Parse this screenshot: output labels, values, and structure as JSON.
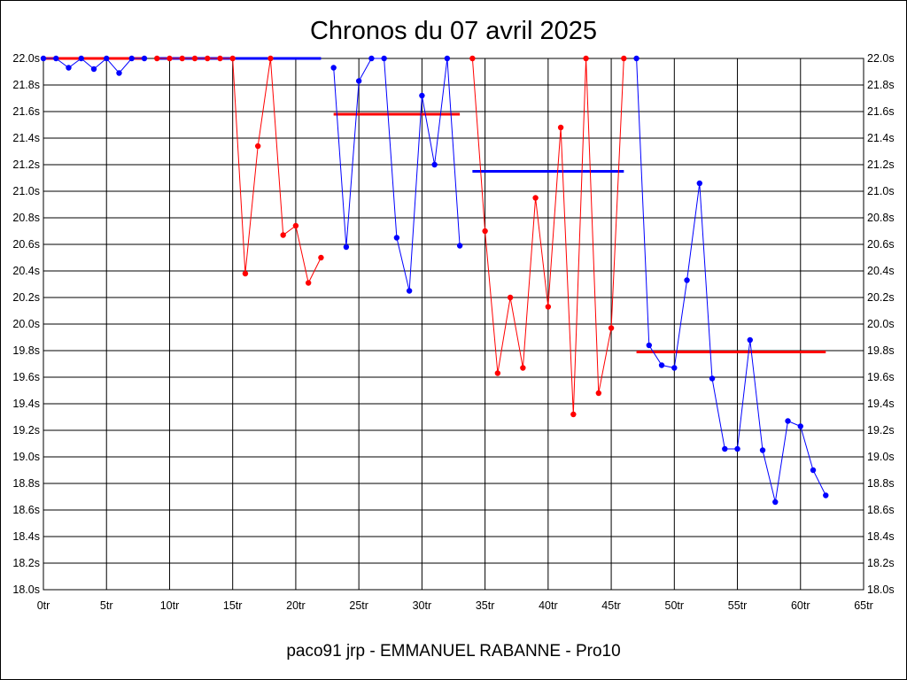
{
  "chart_data": {
    "type": "line",
    "title": "Chronos du 07 avril 2025",
    "footer": "paco91 jrp - EMMANUEL RABANNE - Pro10",
    "xlim": [
      0,
      65
    ],
    "ylim": [
      18.0,
      22.0
    ],
    "grid": true,
    "x_ticks": [
      "0tr",
      "5tr",
      "10tr",
      "15tr",
      "20tr",
      "25tr",
      "30tr",
      "35tr",
      "40tr",
      "45tr",
      "50tr",
      "55tr",
      "60tr",
      "65tr"
    ],
    "x_tick_values": [
      0,
      5,
      10,
      15,
      20,
      25,
      30,
      35,
      40,
      45,
      50,
      55,
      60,
      65
    ],
    "y_ticks": [
      "18.0s",
      "18.2s",
      "18.4s",
      "18.6s",
      "18.8s",
      "19.0s",
      "19.2s",
      "19.4s",
      "19.6s",
      "19.8s",
      "20.0s",
      "20.2s",
      "20.4s",
      "20.6s",
      "20.8s",
      "21.0s",
      "21.2s",
      "21.4s",
      "21.6s",
      "21.8s",
      "22.0s"
    ],
    "y_tick_values": [
      18.0,
      18.2,
      18.4,
      18.6,
      18.8,
      19.0,
      19.2,
      19.4,
      19.6,
      19.8,
      20.0,
      20.2,
      20.4,
      20.6,
      20.8,
      21.0,
      21.2,
      21.4,
      21.6,
      21.8,
      22.0
    ],
    "colors": {
      "red": "#ff0000",
      "blue": "#0000ff"
    },
    "series": [
      {
        "color": "#0000ff",
        "x": [
          0,
          1,
          2,
          3,
          4,
          5,
          6,
          7,
          8
        ],
        "y": [
          22.0,
          22.0,
          21.93,
          22.0,
          21.92,
          22.0,
          21.89,
          22.0,
          22.0
        ]
      },
      {
        "color": "#ff0000",
        "x": [
          9,
          10,
          11,
          12,
          13,
          14,
          15,
          16,
          17,
          18,
          19,
          20,
          21,
          22
        ],
        "y": [
          22.0,
          22.0,
          22.0,
          22.0,
          22.0,
          22.0,
          22.0,
          20.38,
          21.34,
          22.0,
          20.67,
          20.74,
          20.31,
          20.5
        ]
      },
      {
        "color": "#0000ff",
        "x": [
          23,
          24,
          25,
          26,
          27,
          28,
          29,
          30,
          31,
          32,
          33
        ],
        "y": [
          21.93,
          20.58,
          21.83,
          22.0,
          22.0,
          20.65,
          20.25,
          21.72,
          21.2,
          22.0,
          20.59
        ]
      },
      {
        "color": "#ff0000",
        "x": [
          34,
          35,
          36,
          37,
          38,
          39,
          40,
          41,
          42,
          43,
          44,
          45,
          46
        ],
        "y": [
          22.0,
          20.7,
          19.63,
          20.2,
          19.67,
          20.95,
          20.13,
          21.48,
          19.32,
          22.0,
          19.48,
          19.97,
          22.0
        ]
      },
      {
        "color": "#0000ff",
        "x": [
          47,
          48,
          49,
          50,
          51,
          52,
          53,
          54,
          55,
          56,
          57,
          58,
          59,
          60,
          61,
          62
        ],
        "y": [
          22.0,
          19.84,
          19.69,
          19.67,
          20.33,
          21.06,
          19.59,
          19.06,
          19.06,
          19.88,
          19.05,
          18.66,
          19.27,
          19.23,
          18.9,
          18.71
        ]
      }
    ],
    "averages": [
      {
        "color": "#ff0000",
        "x_start": 0,
        "x_end": 8,
        "value": 22.0
      },
      {
        "color": "#0000ff",
        "x_start": 9,
        "x_end": 22,
        "value": 22.0
      },
      {
        "color": "#ff0000",
        "x_start": 23,
        "x_end": 33,
        "value": 21.58
      },
      {
        "color": "#0000ff",
        "x_start": 34,
        "x_end": 46,
        "value": 21.15
      },
      {
        "color": "#ff0000",
        "x_start": 47,
        "x_end": 62,
        "value": 19.79
      }
    ]
  }
}
